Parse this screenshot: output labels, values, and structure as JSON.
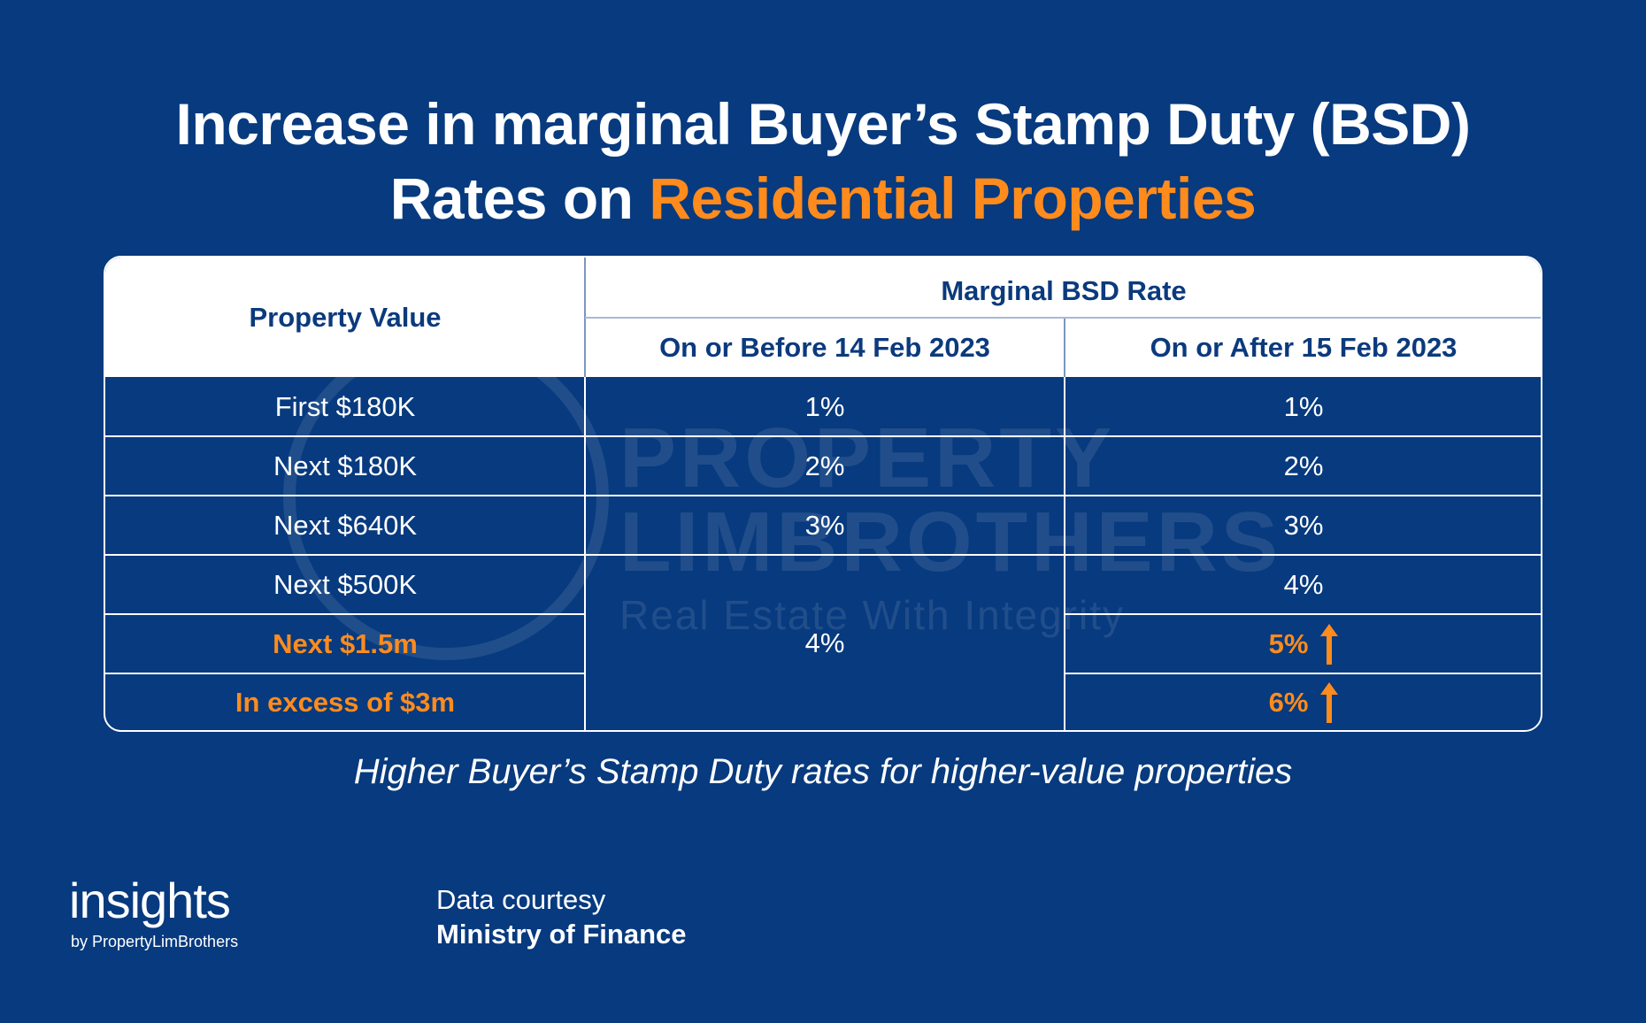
{
  "title": {
    "line1": "Increase in marginal Buyer’s Stamp Duty (BSD)",
    "line2_prefix": "Rates on ",
    "line2_accent": "Residential Properties"
  },
  "watermark": {
    "line1": "PROPERTY",
    "line2": "LIMBROTHERS",
    "line3": "Real Estate With Integrity"
  },
  "table": {
    "header": {
      "property_value": "Property Value",
      "marginal_rate": "Marginal BSD Rate",
      "before": "On or Before 14 Feb 2023",
      "after": "On or After 15 Feb 2023"
    },
    "rows": [
      {
        "property_value": "First $180K",
        "before": "1%",
        "after": "1%",
        "highlight": false
      },
      {
        "property_value": "Next $180K",
        "before": "2%",
        "after": "2%",
        "highlight": false
      },
      {
        "property_value": "Next $640K",
        "before": "3%",
        "after": "3%",
        "highlight": false
      },
      {
        "property_value": "Next $500K",
        "before": "4%",
        "after": "4%",
        "highlight": false
      },
      {
        "property_value": "Next $1.5m",
        "before": "4%",
        "after": "5%",
        "highlight": true
      },
      {
        "property_value": "In excess of $3m",
        "before": "4%",
        "after": "6%",
        "highlight": true
      }
    ],
    "merged_before_value": "4%"
  },
  "caption": "Higher Buyer’s Stamp Duty rates for higher-value properties",
  "logo": {
    "word": "insights",
    "sub": "by PropertyLimBrothers"
  },
  "credit": {
    "line1": "Data courtesy",
    "line2": "Ministry of Finance"
  },
  "colors": {
    "background": "#073a7e",
    "accent": "#ff8b1d",
    "header_text": "#0b3a7d"
  },
  "icons": {
    "increase": "arrow-up-icon"
  }
}
